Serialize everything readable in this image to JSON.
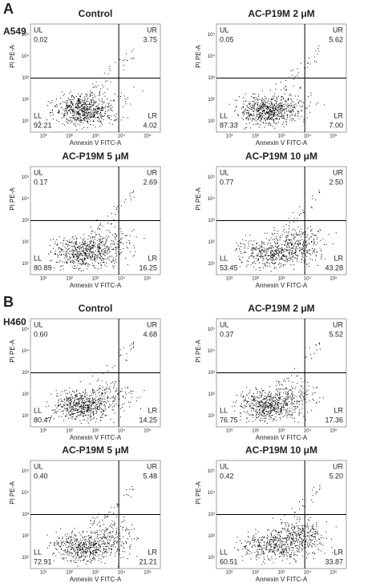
{
  "axes": {
    "x_label": "Annexin V FITC-A",
    "y_label": "PI PE-A",
    "x_ticks": [
      "10¹",
      "10²",
      "10³",
      "10⁴",
      "10⁵"
    ],
    "y_ticks": [
      "10¹",
      "10²",
      "10³",
      "10⁴",
      "10⁵"
    ],
    "quadrant_names": [
      "UL",
      "UR",
      "LL",
      "LR"
    ]
  },
  "panels": [
    {
      "label": "A",
      "cell_line": "A549",
      "plots": [
        {
          "title": "Control",
          "values": [
            "0.02",
            "3.75",
            "92.21",
            "4.02"
          ]
        },
        {
          "title": "AC-P19M 2 μM",
          "values": [
            "0.05",
            "5.62",
            "87.33",
            "7.00"
          ]
        },
        {
          "title": "AC-P19M 5 μM",
          "values": [
            "0.17",
            "2.69",
            "80.89",
            "16.25"
          ]
        },
        {
          "title": "AC-P19M 10 μM",
          "values": [
            "0.77",
            "2.50",
            "53.45",
            "43.28"
          ]
        }
      ]
    },
    {
      "label": "B",
      "cell_line": "H460",
      "plots": [
        {
          "title": "Control",
          "values": [
            "0.60",
            "4.68",
            "80.47",
            "14.25"
          ]
        },
        {
          "title": "AC-P19M 2 μM",
          "values": [
            "0.37",
            "5.52",
            "76.75",
            "17.36"
          ]
        },
        {
          "title": "AC-P19M 5 μM",
          "values": [
            "0.40",
            "5.48",
            "72.91",
            "21.21"
          ]
        },
        {
          "title": "AC-P19M 10 μM",
          "values": [
            "0.42",
            "5.20",
            "60.51",
            "33.87"
          ]
        }
      ]
    }
  ]
}
